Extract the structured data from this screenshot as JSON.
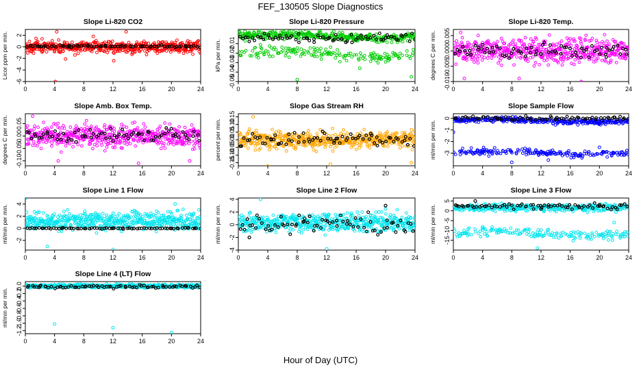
{
  "figure": {
    "title": "FEF_130505  Slope Diagnostics",
    "xlabel": "Hour of Day (UTC)",
    "colors": {
      "overlay": "#000000",
      "background": "#ffffff"
    }
  },
  "chart_data": [
    {
      "type": "scatter",
      "title": "Slope Li-820 CO2",
      "ylabel": "Licor ppm per min.",
      "xlim": [
        0,
        24
      ],
      "ylim": [
        -6,
        3
      ],
      "xticks": [
        0,
        4,
        8,
        12,
        16,
        20,
        24
      ],
      "yticks": [
        -6,
        -4,
        -2,
        0,
        2
      ],
      "color": "#ff0000",
      "series": [
        {
          "role": "main",
          "x_range": [
            0,
            24
          ],
          "bands": [
            {
              "center": 0.0,
              "spread": 0.9,
              "weight": 1.0
            }
          ],
          "samples": [
            [
              4.3,
              2.6
            ],
            [
              4.1,
              -6.0
            ],
            [
              5.5,
              -2.1
            ],
            [
              9.3,
              1.8
            ],
            [
              12.1,
              -2.4
            ],
            [
              13.8,
              2.6
            ],
            [
              14.6,
              -1.3
            ],
            [
              2.3,
              -0.9
            ],
            [
              6.8,
              -1.4
            ]
          ]
        },
        {
          "role": "overlay",
          "x_range": [
            0,
            24
          ],
          "bands": [
            {
              "center": 0.1,
              "spread": 0.15,
              "weight": 1.0
            }
          ],
          "samples": [
            [
              1.0,
              0.1
            ],
            [
              6.0,
              0.0
            ],
            [
              11.0,
              0.2
            ],
            [
              16.0,
              0.1
            ],
            [
              22.0,
              0.0
            ]
          ]
        }
      ]
    },
    {
      "type": "scatter",
      "title": "Slope Li-820 Pressure",
      "ylabel": "kPa per min.",
      "xlim": [
        0,
        24
      ],
      "ylim": [
        -0.05,
        0.005
      ],
      "xticks": [
        0,
        4,
        8,
        12,
        16,
        20,
        24
      ],
      "yticks": [
        -0.05,
        -0.04,
        -0.03,
        -0.02,
        -0.01
      ],
      "color": "#00cc00",
      "series": [
        {
          "role": "main",
          "x_range": [
            0,
            24
          ],
          "bands": [
            {
              "center": -0.002,
              "spread": 0.004,
              "weight": 0.7
            },
            {
              "center": -0.021,
              "spread": 0.005,
              "weight": 0.3
            }
          ],
          "samples": [
            [
              0.9,
              0.003
            ],
            [
              8.0,
              -0.048
            ],
            [
              23.5,
              -0.045
            ],
            [
              16.5,
              -0.036
            ]
          ]
        },
        {
          "role": "overlay",
          "x_range": [
            0,
            24
          ],
          "bands": [
            {
              "center": -0.004,
              "spread": 0.004,
              "weight": 1.0
            }
          ],
          "samples": [
            [
              3.0,
              -0.003
            ],
            [
              13.0,
              -0.006
            ],
            [
              20.0,
              -0.004
            ]
          ]
        }
      ]
    },
    {
      "type": "scatter",
      "title": "Slope Li-820 Temp.",
      "ylabel": "degrees C per min.",
      "xlim": [
        0,
        24
      ],
      "ylim": [
        -0.01,
        0.007
      ],
      "xticks": [
        0,
        4,
        8,
        12,
        16,
        20,
        24
      ],
      "yticks": [
        -0.01,
        -0.005,
        0,
        0.005
      ],
      "color": "#ff00ff",
      "series": [
        {
          "role": "main",
          "x_range": [
            0,
            24
          ],
          "bands": [
            {
              "center": 0.0,
              "spread": 0.0035,
              "weight": 1.0
            }
          ],
          "samples": [
            [
              1.0,
              0.006
            ],
            [
              1.5,
              -0.009
            ],
            [
              9.0,
              -0.009
            ],
            [
              17.5,
              -0.01
            ]
          ]
        },
        {
          "role": "overlay",
          "x_range": [
            0,
            24
          ],
          "bands": [
            {
              "center": 0.0,
              "spread": 0.002,
              "weight": 1.0
            }
          ],
          "samples": [
            [
              4.0,
              0.002
            ],
            [
              12.0,
              -0.001
            ],
            [
              21.0,
              0.001
            ]
          ]
        }
      ]
    },
    {
      "type": "scatter",
      "title": "Slope Amb. Box Temp.",
      "ylabel": "degrees C per min.",
      "xlim": [
        0,
        24
      ],
      "ylim": [
        -0.12,
        0.09
      ],
      "xticks": [
        0,
        4,
        8,
        12,
        16,
        20,
        24
      ],
      "yticks": [
        -0.1,
        -0.05,
        0,
        0.05
      ],
      "color": "#ff00ff",
      "series": [
        {
          "role": "main",
          "x_range": [
            0,
            24
          ],
          "bands": [
            {
              "center": 0.0,
              "spread": 0.04,
              "weight": 1.0
            }
          ],
          "samples": [
            [
              1.0,
              0.08
            ],
            [
              15.5,
              -0.11
            ],
            [
              4.5,
              -0.1
            ],
            [
              22.5,
              -0.1
            ]
          ]
        },
        {
          "role": "overlay",
          "x_range": [
            0,
            24
          ],
          "bands": [
            {
              "center": 0.0,
              "spread": 0.025,
              "weight": 1.0
            }
          ],
          "samples": [
            [
              3.0,
              0.01
            ],
            [
              12.0,
              -0.02
            ],
            [
              20.0,
              0.03
            ]
          ]
        }
      ]
    },
    {
      "type": "scatter",
      "title": "Slope Gas Stream RH",
      "ylabel": "percent per min.",
      "xlim": [
        0,
        24
      ],
      "ylim": [
        -0.17,
        0.17
      ],
      "xticks": [
        0,
        4,
        8,
        12,
        16,
        20,
        24
      ],
      "yticks": [
        -0.15,
        -0.1,
        -0.05,
        0,
        0.05,
        0.1,
        0.15
      ],
      "color": "#ffa500",
      "series": [
        {
          "role": "main",
          "x_range": [
            0,
            24
          ],
          "bands": [
            {
              "center": 0.0,
              "spread": 0.05,
              "weight": 1.0
            }
          ],
          "samples": [
            [
              4.0,
              -0.17
            ],
            [
              2.0,
              0.15
            ],
            [
              12.5,
              -0.16
            ],
            [
              23.5,
              -0.15
            ]
          ]
        },
        {
          "role": "overlay",
          "x_range": [
            0,
            24
          ],
          "bands": [
            {
              "center": 0.0,
              "spread": 0.04,
              "weight": 1.0
            }
          ],
          "samples": [
            [
              5.0,
              0.03
            ],
            [
              13.0,
              -0.02
            ],
            [
              18.0,
              0.04
            ]
          ]
        }
      ]
    },
    {
      "type": "scatter",
      "title": "Slope Sample Flow",
      "ylabel": "ml/min per min.",
      "xlim": [
        0,
        24
      ],
      "ylim": [
        -4.1,
        0.4
      ],
      "xticks": [
        0,
        4,
        8,
        12,
        16,
        20,
        24
      ],
      "yticks": [
        -3,
        -2,
        -1,
        0
      ],
      "color": "#0000ff",
      "series": [
        {
          "role": "main",
          "x_range": [
            0,
            24
          ],
          "bands": [
            {
              "center": -0.2,
              "spread": 0.2,
              "weight": 0.62
            },
            {
              "center": -3.0,
              "spread": 0.25,
              "weight": 0.38
            }
          ],
          "samples": [
            [
              0.0,
              -1.2
            ],
            [
              8.0,
              -3.8
            ],
            [
              13.0,
              -3.6
            ],
            [
              20.0,
              -2.5
            ]
          ]
        },
        {
          "role": "overlay",
          "x_range": [
            0,
            24
          ],
          "bands": [
            {
              "center": 0.0,
              "spread": 0.15,
              "weight": 1.0
            }
          ],
          "samples": [
            [
              6.0,
              0.0
            ],
            [
              14.0,
              -0.1
            ],
            [
              22.0,
              0.1
            ]
          ]
        }
      ]
    },
    {
      "type": "scatter",
      "title": "Slope Line 1 Flow",
      "ylabel": "ml/min per min.",
      "xlim": [
        0,
        24
      ],
      "ylim": [
        -3.6,
        5.0
      ],
      "xticks": [
        0,
        4,
        8,
        12,
        16,
        20,
        24
      ],
      "yticks": [
        -2,
        0,
        2,
        4
      ],
      "color": "#00e5ee",
      "series": [
        {
          "role": "main",
          "x_range": [
            0,
            24
          ],
          "bands": [
            {
              "center": 1.2,
              "spread": 1.3,
              "weight": 1.0
            }
          ],
          "samples": [
            [
              0.0,
              4.9
            ],
            [
              12.0,
              -3.5
            ],
            [
              3.0,
              -3.0
            ],
            [
              20.5,
              4.0
            ]
          ]
        },
        {
          "role": "overlay",
          "x_range": [
            0,
            24
          ],
          "bands": [
            {
              "center": 0.0,
              "spread": 0.1,
              "weight": 1.0
            }
          ],
          "samples": [
            [
              5.0,
              0.0
            ],
            [
              12.0,
              0.0
            ],
            [
              20.0,
              0.0
            ]
          ]
        }
      ]
    },
    {
      "type": "scatter",
      "title": "Slope Line 2 Flow",
      "ylabel": "ml/min per min.",
      "xlim": [
        0,
        24
      ],
      "ylim": [
        -4.0,
        4.2
      ],
      "xticks": [
        0,
        4,
        8,
        12,
        16,
        20,
        24
      ],
      "yticks": [
        -4,
        -2,
        0,
        2,
        4
      ],
      "color": "#00e5ee",
      "series": [
        {
          "role": "main",
          "x_range": [
            0,
            24
          ],
          "bands": [
            {
              "center": 0.3,
              "spread": 1.3,
              "weight": 1.0
            }
          ],
          "samples": [
            [
              3.0,
              4.0
            ],
            [
              12.0,
              -3.8
            ],
            [
              20.0,
              2.5
            ]
          ]
        },
        {
          "role": "overlay",
          "x_range": [
            0,
            24
          ],
          "bands": [
            {
              "center": 0.0,
              "spread": 1.3,
              "weight": 1.0
            }
          ],
          "samples": [
            [
              20.0,
              3.0
            ],
            [
              1.5,
              -2.0
            ],
            [
              9.0,
              1.0
            ]
          ]
        }
      ]
    },
    {
      "type": "scatter",
      "title": "Slope Line 3 Flow",
      "ylabel": "ml/min per min.",
      "xlim": [
        0,
        24
      ],
      "ylim": [
        -20,
        6.5
      ],
      "xticks": [
        0,
        4,
        8,
        12,
        16,
        20,
        24
      ],
      "yticks": [
        -15,
        -10,
        -5,
        0,
        5
      ],
      "color": "#00e5ee",
      "series": [
        {
          "role": "main",
          "x_range": [
            0,
            24
          ],
          "bands": [
            {
              "center": 1.5,
              "spread": 1.6,
              "weight": 0.65
            },
            {
              "center": -11.5,
              "spread": 2.0,
              "weight": 0.35
            }
          ],
          "samples": [
            [
              3.0,
              5.0
            ],
            [
              11.5,
              -19.0
            ],
            [
              22.0,
              -6.0
            ]
          ]
        },
        {
          "role": "overlay",
          "x_range": [
            0,
            24
          ],
          "bands": [
            {
              "center": 2.2,
              "spread": 1.2,
              "weight": 1.0
            }
          ],
          "samples": [
            [
              3.0,
              5.0
            ],
            [
              12.0,
              1.0
            ],
            [
              20.0,
              3.0
            ]
          ]
        }
      ]
    },
    {
      "type": "scatter",
      "title": "Slope Line 4 (LT) Flow",
      "ylabel": "ml/min per min.",
      "xlim": [
        0,
        24
      ],
      "ylim": [
        -1.28,
        0.12
      ],
      "xticks": [
        0,
        4,
        8,
        12,
        16,
        20,
        24
      ],
      "yticks": [
        -1.2,
        -1.0,
        -0.8,
        -0.6,
        -0.4,
        -0.2,
        0.0
      ],
      "color": "#00e5ee",
      "series": [
        {
          "role": "main",
          "x_range": [
            0,
            24
          ],
          "bands": [
            {
              "center": 0.0,
              "spread": 0.04,
              "weight": 1.0
            }
          ],
          "samples": [
            [
              4.0,
              -1.02
            ],
            [
              12.0,
              -1.12
            ],
            [
              20.0,
              -1.25
            ]
          ]
        },
        {
          "role": "overlay",
          "x_range": [
            0,
            24
          ],
          "bands": [
            {
              "center": -0.02,
              "spread": 0.04,
              "weight": 1.0
            }
          ],
          "samples": [
            [
              2.0,
              0.0
            ],
            [
              10.0,
              -0.03
            ],
            [
              22.0,
              0.0
            ]
          ]
        }
      ]
    }
  ]
}
